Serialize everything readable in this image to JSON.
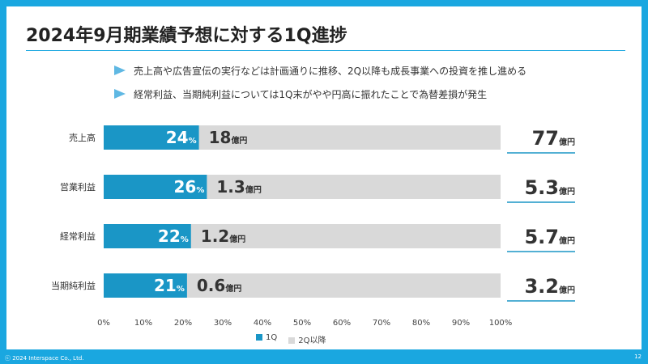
{
  "slide": {
    "title": "2024年9月期業績予想に対する1Q進捗",
    "bullets": [
      "売上高や広告宣伝の実行などは計画通りに推移、2Q以降も成長事業への投資を推し進める",
      "経常利益、当期純利益については1Q末がやや円高に振れたことで為替差損が発生"
    ],
    "footer": "ⓒ 2024 Interspace Co., Ltd.",
    "page_number": "12"
  },
  "colors": {
    "q1": "#1a96c6",
    "rest": "#d9d9d9",
    "frame": "#1aa7e0",
    "total_underline": "#1a96c6"
  },
  "chart_data": {
    "type": "bar",
    "orientation": "horizontal",
    "stacked": true,
    "categories": [
      "売上高",
      "営業利益",
      "経常利益",
      "当期純利益"
    ],
    "series": [
      {
        "name": "1Q",
        "values": [
          24,
          26,
          22,
          21
        ],
        "labels": [
          "24",
          "26",
          "22",
          "21"
        ],
        "label_unit": "%"
      },
      {
        "name": "2Q以降",
        "values": [
          76,
          74,
          78,
          79
        ],
        "labels": [
          "18",
          "1.3",
          "1.2",
          "0.6"
        ],
        "label_unit": "億円"
      }
    ],
    "totals": {
      "labels": [
        "77",
        "5.3",
        "5.7",
        "3.2"
      ],
      "unit": "億円"
    },
    "xlim": [
      0,
      100
    ],
    "xticks": [
      "0%",
      "10%",
      "20%",
      "30%",
      "40%",
      "50%",
      "60%",
      "70%",
      "80%",
      "90%",
      "100%"
    ],
    "grid": false,
    "legend": "bottom"
  }
}
